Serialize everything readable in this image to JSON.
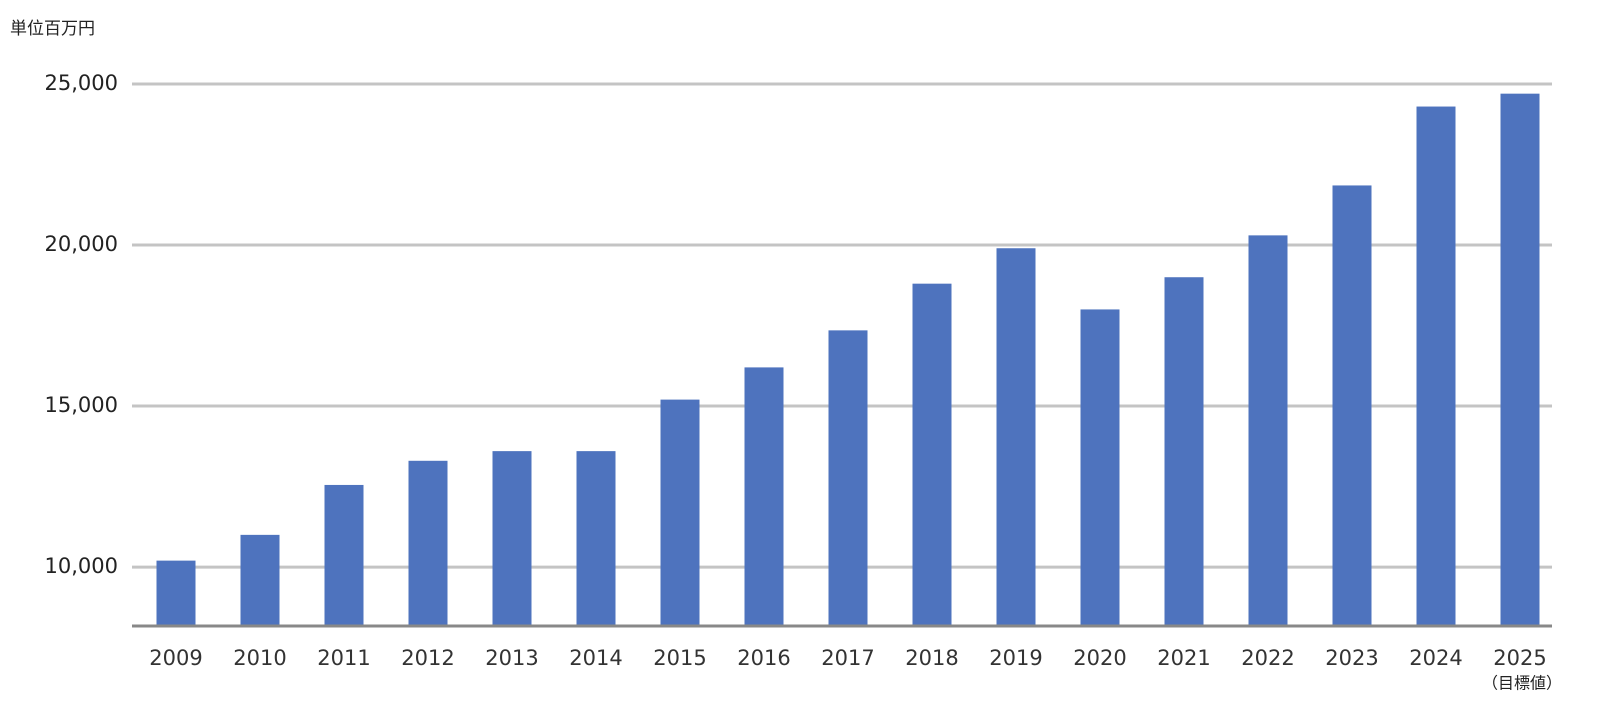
{
  "chart_data": {
    "type": "bar",
    "y_label": "単位百万円",
    "categories": [
      "2009",
      "2010",
      "2011",
      "2012",
      "2013",
      "2014",
      "2015",
      "2016",
      "2017",
      "2018",
      "2019",
      "2020",
      "2021",
      "2022",
      "2023",
      "2024",
      "2025"
    ],
    "category_note": "（目標値）",
    "values": [
      10200,
      11000,
      12550,
      13300,
      13600,
      13600,
      15200,
      16200,
      17350,
      18800,
      19900,
      18000,
      19000,
      20300,
      21850,
      24300,
      24700
    ],
    "color": "#4e73be",
    "ylim": [
      8170,
      25000
    ],
    "yticks": [
      {
        "value": 10000,
        "label": "10,000"
      },
      {
        "value": 15000,
        "label": "15,000"
      },
      {
        "value": 20000,
        "label": "20,000"
      },
      {
        "value": 25000,
        "label": "25,000"
      }
    ],
    "grid": true
  }
}
